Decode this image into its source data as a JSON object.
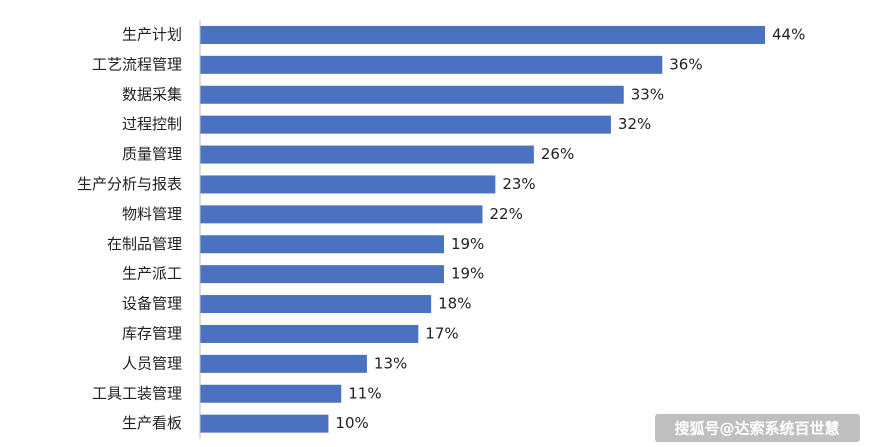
{
  "chart_data": {
    "type": "bar",
    "orientation": "horizontal",
    "categories": [
      "生产计划",
      "工艺流程管理",
      "数据采集",
      "过程控制",
      "质量管理",
      "生产分析与报表",
      "物料管理",
      "在制品管理",
      "生产派工",
      "设备管理",
      "库存管理",
      "人员管理",
      "工具工装管理",
      "生产看板"
    ],
    "values": [
      44,
      36,
      33,
      32,
      26,
      23,
      22,
      19,
      19,
      18,
      17,
      13,
      11,
      10
    ],
    "value_labels": [
      "44%",
      "36%",
      "33%",
      "32%",
      "26%",
      "23%",
      "22%",
      "19%",
      "19%",
      "18%",
      "17%",
      "13%",
      "11%",
      "10%"
    ],
    "color": "#4a72c0"
  },
  "watermark": "搜狐号@达索系统百世慧"
}
